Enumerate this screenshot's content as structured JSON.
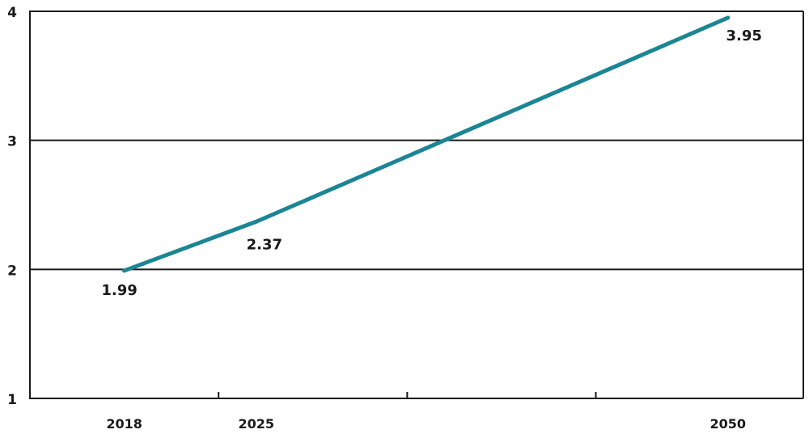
{
  "chart_data": {
    "type": "line",
    "title": "",
    "xlabel": "",
    "ylabel": "",
    "x": [
      2018,
      2025,
      2050
    ],
    "x_tick_labels": [
      "2018",
      "2025",
      "2050"
    ],
    "series": [
      {
        "values": [
          1.99,
          2.37,
          3.95
        ],
        "data_labels": [
          "1.99",
          "2.37",
          "3.95"
        ],
        "color": "#1b8594"
      }
    ],
    "y_ticks": [
      1,
      2,
      3,
      4
    ],
    "y_tick_labels": [
      "1",
      "2",
      "3",
      "4"
    ],
    "ylim": [
      1,
      4
    ],
    "xlim": [
      2013,
      2054
    ],
    "x_minor_ticks": [
      2023,
      2033,
      2043
    ],
    "grid": "horizontal",
    "frame_color": "#1a1a1a"
  }
}
